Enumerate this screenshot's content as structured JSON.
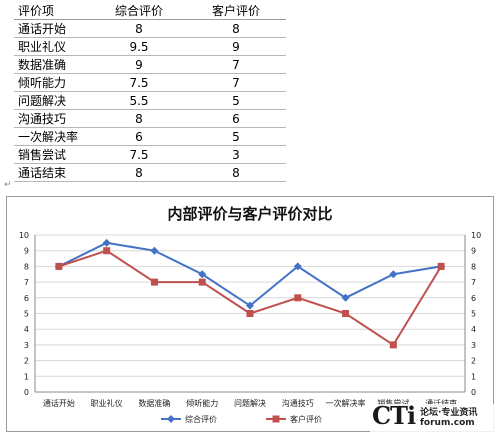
{
  "table": {
    "headers": [
      "评价项",
      "综合评价",
      "客户评价"
    ],
    "rows": [
      [
        "通话开始",
        "8",
        "8"
      ],
      [
        "职业礼仪",
        "9.5",
        "9"
      ],
      [
        "数据准确",
        "9",
        "7"
      ],
      [
        "倾听能力",
        "7.5",
        "7"
      ],
      [
        "问题解决",
        "5.5",
        "5"
      ],
      [
        "沟通技巧",
        "8",
        "6"
      ],
      [
        "一次解决率",
        "6",
        "5"
      ],
      [
        "销售尝试",
        "7.5",
        "3"
      ],
      [
        "通话结束",
        "8",
        "8"
      ]
    ]
  },
  "chart_data": {
    "type": "line",
    "title": "内部评价与客户评价对比",
    "categories": [
      "通话开始",
      "职业礼仪",
      "数据准确",
      "倾听能力",
      "问题解决",
      "沟通技巧",
      "一次解决率",
      "销售尝试",
      "通话结束"
    ],
    "series": [
      {
        "name": "综合评价",
        "values": [
          8,
          9.5,
          9,
          7.5,
          5.5,
          8,
          6,
          7.5,
          8
        ],
        "color": "#4472c4",
        "marker": "diamond"
      },
      {
        "name": "客户评价",
        "values": [
          8,
          9,
          7,
          7,
          5,
          6,
          5,
          3,
          8
        ],
        "color": "#c0504d",
        "marker": "square"
      }
    ],
    "ylim": [
      0,
      10
    ],
    "yticks": [
      0,
      1,
      2,
      3,
      4,
      5,
      6,
      7,
      8,
      9,
      10
    ],
    "secondary_y_axis": true,
    "grid": true,
    "legend_position": "bottom"
  },
  "watermark": {
    "logo_text": "CTi",
    "line1": "论坛·专业资讯",
    "line2": "forum.com"
  }
}
